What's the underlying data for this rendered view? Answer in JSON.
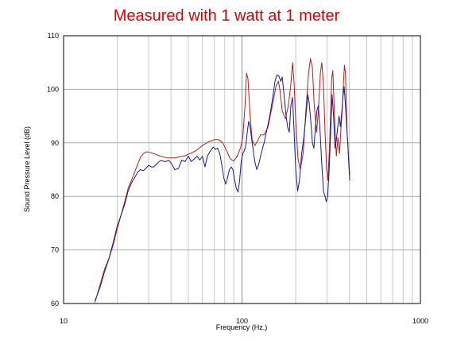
{
  "chart_data": {
    "type": "line",
    "title": "Measured with 1 watt at 1 meter",
    "xlabel": "Frequency (Hz.)",
    "ylabel": "Sound Pressure Level (dB)",
    "x_scale": "log",
    "xlim": [
      10,
      1000
    ],
    "ylim": [
      60,
      110
    ],
    "x_ticks": [
      10,
      100,
      1000
    ],
    "x_tick_labels": [
      "10",
      "100",
      "1000"
    ],
    "y_ticks": [
      60,
      70,
      80,
      90,
      100,
      110
    ],
    "y_tick_labels": [
      "60",
      "70",
      "80",
      "90",
      "100",
      "110"
    ],
    "grid": true,
    "legend": false,
    "series": [
      {
        "color": "#b02020",
        "points": [
          [
            15.0,
            60.2
          ],
          [
            16.0,
            63.5
          ],
          [
            17.0,
            66.5
          ],
          [
            18.0,
            68.5
          ],
          [
            19.0,
            71.0
          ],
          [
            20.0,
            74.0
          ],
          [
            21.0,
            76.5
          ],
          [
            22.0,
            79.0
          ],
          [
            23.0,
            81.5
          ],
          [
            24.0,
            83.0
          ],
          [
            25.0,
            84.5
          ],
          [
            26.0,
            86.0
          ],
          [
            27.0,
            87.3
          ],
          [
            28.0,
            88.0
          ],
          [
            29.0,
            88.3
          ],
          [
            30.0,
            88.3
          ],
          [
            32.0,
            88.0
          ],
          [
            35.0,
            87.5
          ],
          [
            38.0,
            87.2
          ],
          [
            42.0,
            87.2
          ],
          [
            48.0,
            87.6
          ],
          [
            55.0,
            88.5
          ],
          [
            60.0,
            89.5
          ],
          [
            65.0,
            90.2
          ],
          [
            70.0,
            90.6
          ],
          [
            74.0,
            90.6
          ],
          [
            78.0,
            90.0
          ],
          [
            82.0,
            88.5
          ],
          [
            86.0,
            87.0
          ],
          [
            90.0,
            86.6
          ],
          [
            94.0,
            87.5
          ],
          [
            98.0,
            89.0
          ],
          [
            101.0,
            91.0
          ],
          [
            104.0,
            97.0
          ],
          [
            106.0,
            103.0
          ],
          [
            108.0,
            102.0
          ],
          [
            111.0,
            95.0
          ],
          [
            114.0,
            90.5
          ],
          [
            118.0,
            89.5
          ],
          [
            122.0,
            90.3
          ],
          [
            127.0,
            91.5
          ],
          [
            133.0,
            91.5
          ],
          [
            140.0,
            93.0
          ],
          [
            148.0,
            97.0
          ],
          [
            155.0,
            100.5
          ],
          [
            160.0,
            101.5
          ],
          [
            163.0,
            100.0
          ],
          [
            168.0,
            96.0
          ],
          [
            175.0,
            94.5
          ],
          [
            182.0,
            97.0
          ],
          [
            188.0,
            101.0
          ],
          [
            192.0,
            105.0
          ],
          [
            196.0,
            101.0
          ],
          [
            200.0,
            94.0
          ],
          [
            206.0,
            87.0
          ],
          [
            212.0,
            85.0
          ],
          [
            220.0,
            88.0
          ],
          [
            228.0,
            96.0
          ],
          [
            236.0,
            103.0
          ],
          [
            242.0,
            105.7
          ],
          [
            248.0,
            104.0
          ],
          [
            254.0,
            97.0
          ],
          [
            262.0,
            92.0
          ],
          [
            268.0,
            96.0
          ],
          [
            275.0,
            103.0
          ],
          [
            280.0,
            105.0
          ],
          [
            286.0,
            101.0
          ],
          [
            292.0,
            92.0
          ],
          [
            298.0,
            85.0
          ],
          [
            303.0,
            83.0
          ],
          [
            310.0,
            90.0
          ],
          [
            318.0,
            102.0
          ],
          [
            323.0,
            103.5
          ],
          [
            330.0,
            95.0
          ],
          [
            338.0,
            87.5
          ],
          [
            345.0,
            91.0
          ],
          [
            352.0,
            88.0
          ],
          [
            358.0,
            92.0
          ],
          [
            364.0,
            96.0
          ],
          [
            370.0,
            101.0
          ],
          [
            375.0,
            104.5
          ],
          [
            380.0,
            103.0
          ],
          [
            388.0,
            92.0
          ],
          [
            396.0,
            87.0
          ],
          [
            402.0,
            84.0
          ]
        ]
      },
      {
        "color": "#1a1a90",
        "points": [
          [
            15.0,
            60.5
          ],
          [
            16.0,
            63.0
          ],
          [
            17.0,
            66.0
          ],
          [
            18.0,
            68.5
          ],
          [
            19.0,
            71.5
          ],
          [
            20.0,
            74.5
          ],
          [
            21.0,
            76.5
          ],
          [
            22.0,
            78.5
          ],
          [
            23.0,
            81.0
          ],
          [
            24.0,
            82.5
          ],
          [
            25.0,
            83.5
          ],
          [
            26.0,
            84.5
          ],
          [
            27.0,
            85.0
          ],
          [
            28.0,
            84.8
          ],
          [
            29.0,
            85.3
          ],
          [
            30.0,
            85.8
          ],
          [
            31.0,
            85.5
          ],
          [
            32.0,
            85.5
          ],
          [
            33.5,
            86.2
          ],
          [
            35.0,
            86.7
          ],
          [
            37.0,
            86.5
          ],
          [
            39.0,
            86.7
          ],
          [
            40.5,
            86.0
          ],
          [
            42.0,
            85.0
          ],
          [
            44.0,
            85.2
          ],
          [
            46.0,
            86.8
          ],
          [
            48.0,
            86.5
          ],
          [
            50.0,
            87.5
          ],
          [
            52.0,
            86.5
          ],
          [
            54.0,
            87.0
          ],
          [
            56.0,
            87.5
          ],
          [
            58.0,
            86.8
          ],
          [
            60.0,
            87.5
          ],
          [
            62.0,
            85.5
          ],
          [
            64.0,
            87.5
          ],
          [
            66.5,
            88.5
          ],
          [
            69.0,
            89.2
          ],
          [
            71.0,
            88.8
          ],
          [
            73.0,
            89.0
          ],
          [
            75.0,
            88.0
          ],
          [
            77.0,
            86.0
          ],
          [
            79.0,
            83.5
          ],
          [
            81.0,
            82.3
          ],
          [
            83.0,
            83.5
          ],
          [
            85.0,
            85.0
          ],
          [
            87.0,
            85.5
          ],
          [
            89.0,
            85.0
          ],
          [
            91.0,
            83.0
          ],
          [
            93.0,
            81.5
          ],
          [
            95.0,
            80.8
          ],
          [
            97.0,
            83.0
          ],
          [
            99.0,
            86.5
          ],
          [
            101.0,
            88.0
          ],
          [
            103.0,
            88.5
          ],
          [
            105.0,
            89.5
          ],
          [
            107.0,
            92.0
          ],
          [
            109.0,
            94.0
          ],
          [
            111.0,
            93.0
          ],
          [
            114.0,
            90.0
          ],
          [
            118.0,
            86.5
          ],
          [
            121.0,
            85.0
          ],
          [
            124.0,
            86.0
          ],
          [
            128.0,
            88.0
          ],
          [
            133.0,
            90.0
          ],
          [
            138.0,
            92.5
          ],
          [
            143.0,
            95.0
          ],
          [
            148.0,
            98.0
          ],
          [
            153.0,
            101.5
          ],
          [
            157.0,
            102.7
          ],
          [
            161.0,
            102.5
          ],
          [
            165.0,
            101.5
          ],
          [
            168.0,
            102.3
          ],
          [
            172.0,
            99.0
          ],
          [
            176.0,
            95.5
          ],
          [
            180.0,
            93.0
          ],
          [
            184.0,
            92.0
          ],
          [
            188.0,
            97.0
          ],
          [
            192.0,
            98.5
          ],
          [
            196.0,
            92.0
          ],
          [
            200.0,
            85.0
          ],
          [
            205.0,
            81.0
          ],
          [
            210.0,
            83.0
          ],
          [
            216.0,
            88.0
          ],
          [
            222.0,
            91.0
          ],
          [
            228.0,
            95.0
          ],
          [
            234.0,
            99.0
          ],
          [
            238.0,
            97.5
          ],
          [
            243.0,
            94.0
          ],
          [
            248.0,
            90.0
          ],
          [
            253.0,
            89.0
          ],
          [
            258.0,
            93.0
          ],
          [
            263.0,
            96.0
          ],
          [
            268.0,
            97.0
          ],
          [
            274.0,
            92.0
          ],
          [
            280.0,
            86.0
          ],
          [
            286.0,
            81.0
          ],
          [
            292.0,
            80.0
          ],
          [
            297.0,
            79.0
          ],
          [
            302.0,
            80.0
          ],
          [
            308.0,
            85.0
          ],
          [
            314.0,
            92.0
          ],
          [
            320.0,
            99.0
          ],
          [
            326.0,
            95.0
          ],
          [
            332.0,
            89.0
          ],
          [
            338.0,
            90.5
          ],
          [
            344.0,
            93.0
          ],
          [
            350.0,
            95.0
          ],
          [
            356.0,
            93.0
          ],
          [
            362.0,
            95.5
          ],
          [
            368.0,
            98.5
          ],
          [
            374.0,
            100.5
          ],
          [
            380.0,
            97.0
          ],
          [
            386.0,
            93.0
          ],
          [
            392.0,
            90.0
          ],
          [
            397.0,
            86.0
          ],
          [
            402.0,
            83.0
          ]
        ]
      }
    ]
  }
}
